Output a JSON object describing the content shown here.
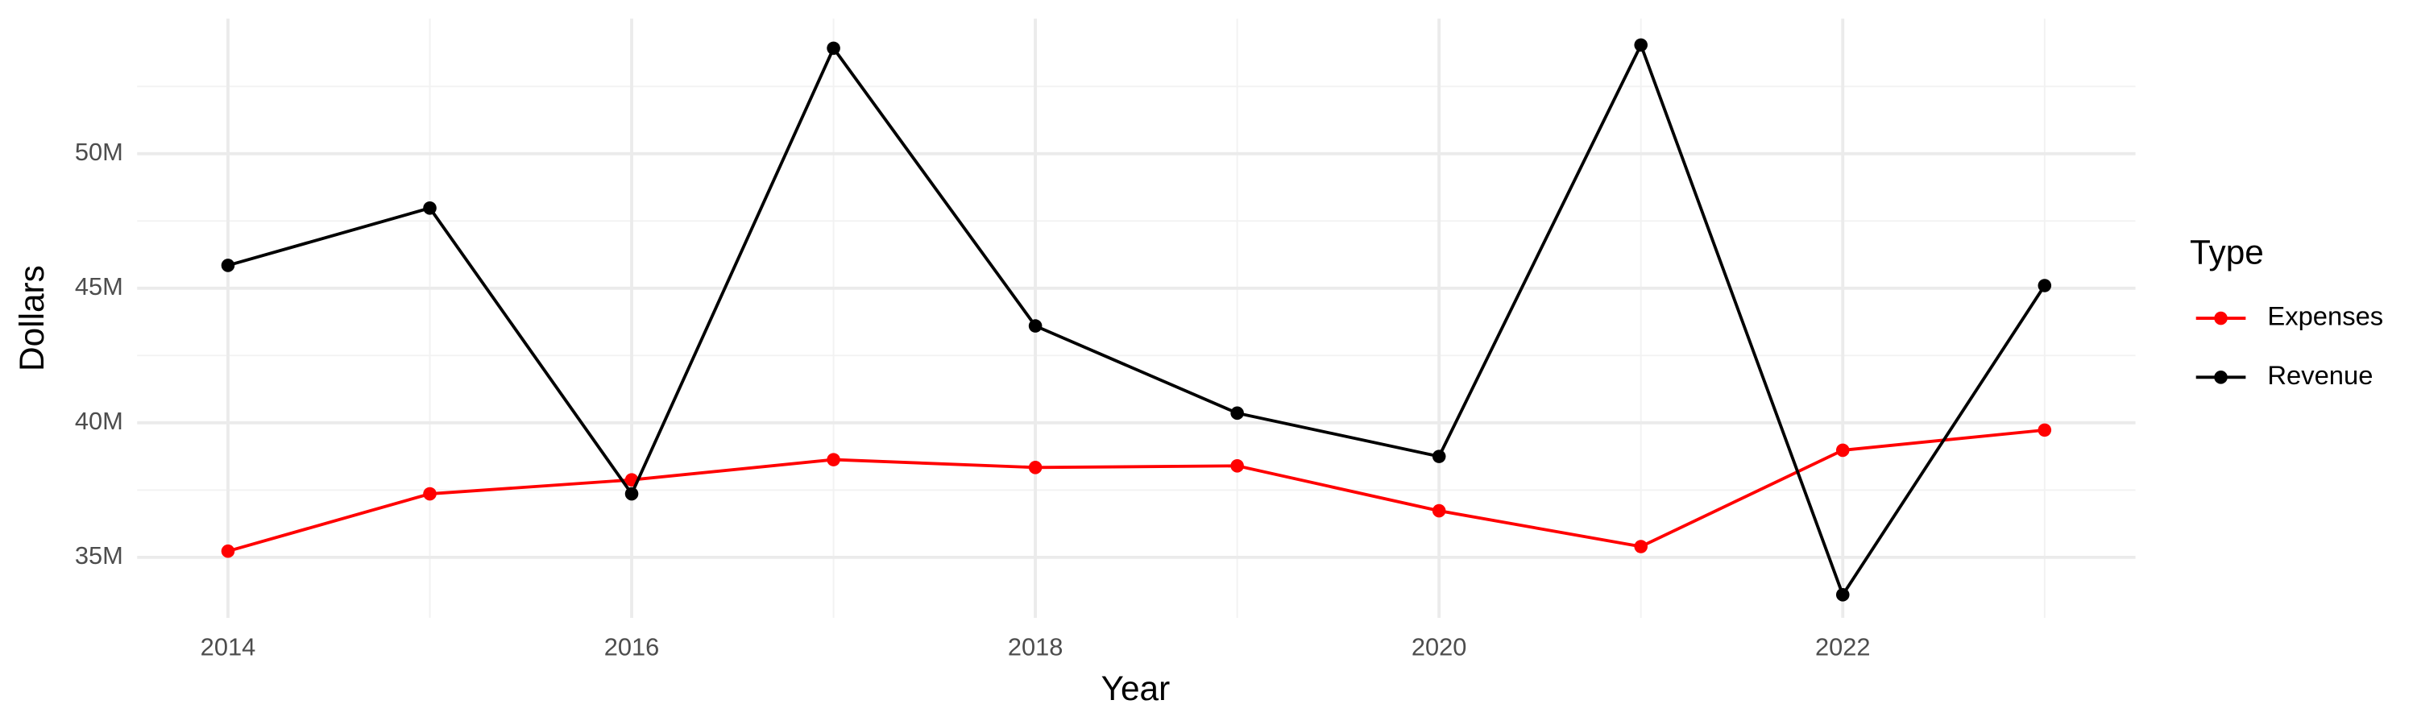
{
  "chart_data": {
    "type": "line",
    "x_label": "Year",
    "y_label": "Dollars",
    "legend_title": "Type",
    "legend_position": "right",
    "grid": true,
    "minor_grid": true,
    "x": [
      2014,
      2015,
      2016,
      2017,
      2018,
      2019,
      2020,
      2021,
      2022,
      2023
    ],
    "series": [
      {
        "name": "Expenses",
        "color": "#ff0000",
        "values": [
          35230000,
          37360000,
          37880000,
          38630000,
          38340000,
          38400000,
          36730000,
          35400000,
          38980000,
          39730000
        ]
      },
      {
        "name": "Revenue",
        "color": "#000000",
        "values": [
          45850000,
          47980000,
          37360000,
          53920000,
          43600000,
          40360000,
          38750000,
          54040000,
          33610000,
          45100000
        ]
      }
    ],
    "xlim": [
      2013.55,
      2023.45
    ],
    "xticks": [
      2014,
      2016,
      2018,
      2020,
      2022
    ],
    "ylim": [
      32750000,
      55020000
    ],
    "yticks": [
      {
        "value": 35000000,
        "label": "35M"
      },
      {
        "value": 40000000,
        "label": "40M"
      },
      {
        "value": 45000000,
        "label": "45M"
      },
      {
        "value": 50000000,
        "label": "50M"
      }
    ]
  }
}
